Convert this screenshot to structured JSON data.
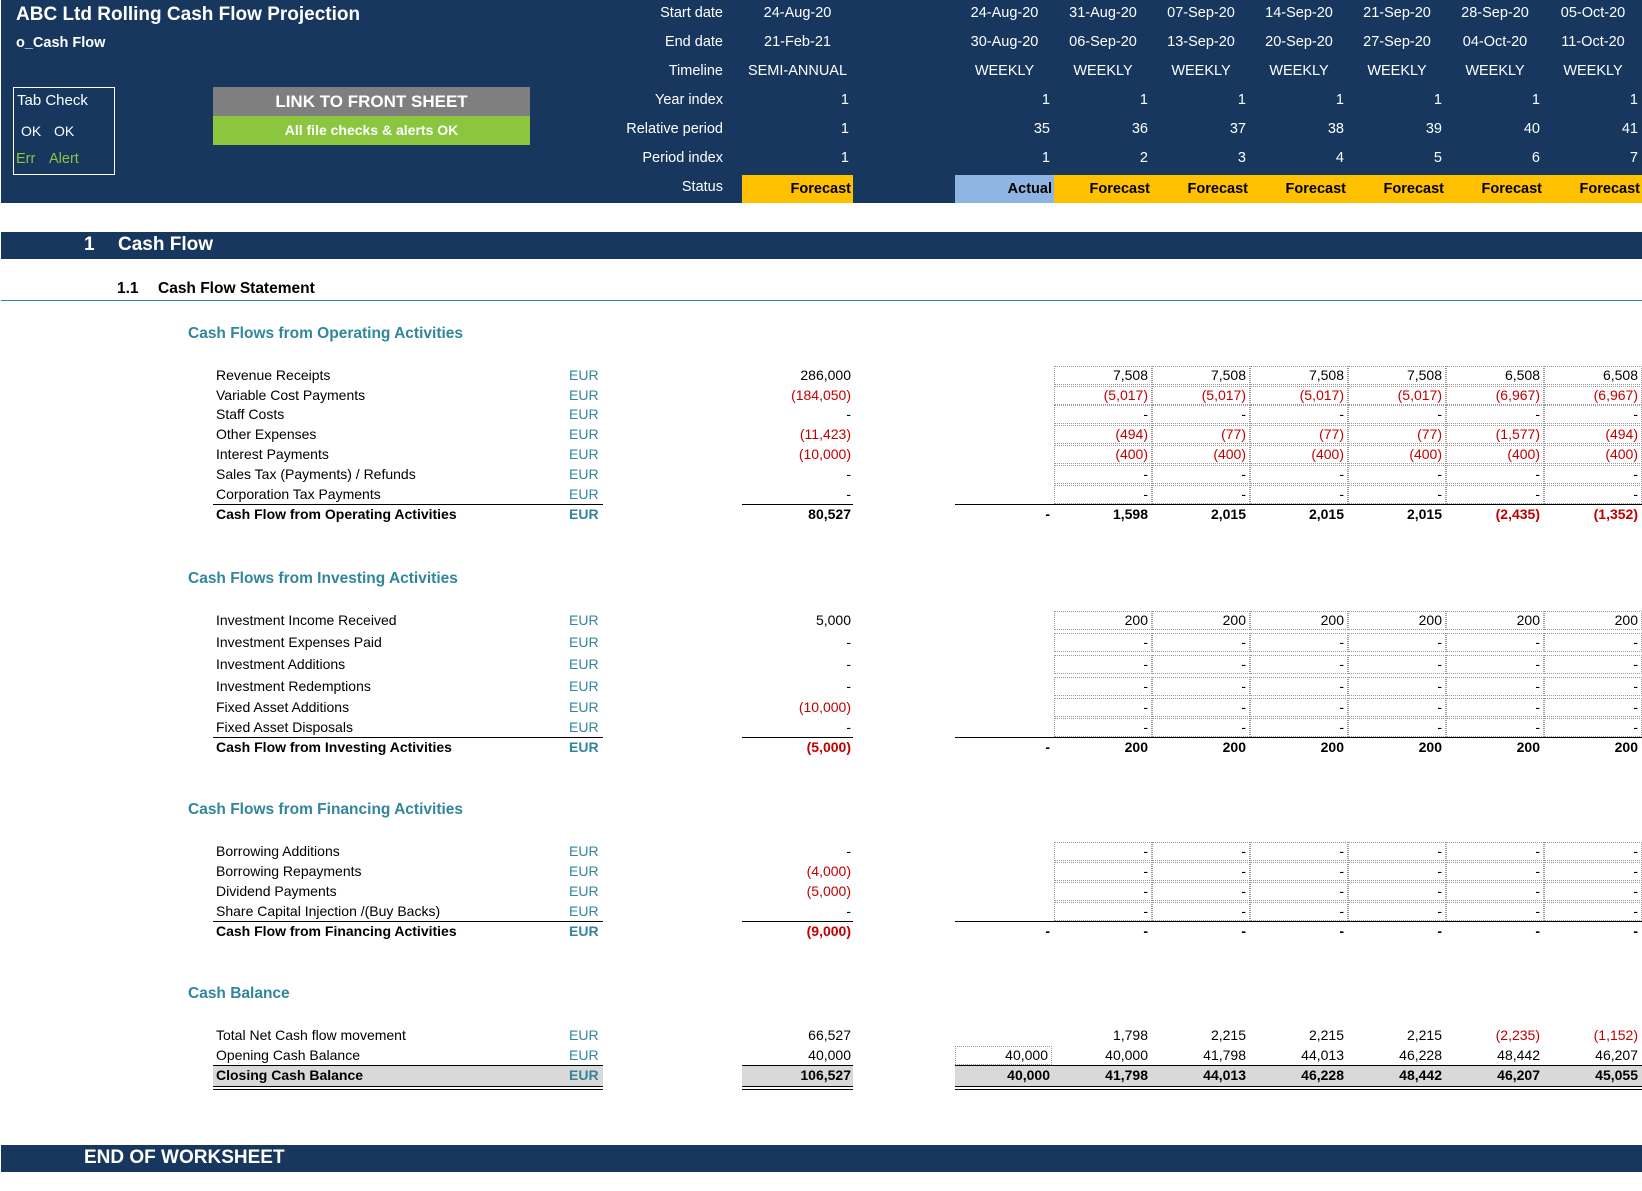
{
  "header": {
    "title": "ABC Ltd Rolling Cash Flow Projection",
    "sheet_name": "o_Cash Flow",
    "tab_check": {
      "title": "Tab Check",
      "ok1": "OK",
      "ok2": "OK",
      "err": "Err",
      "alert": "Alert"
    },
    "link_button": "LINK TO FRONT SHEET",
    "checks_banner": "All file checks & alerts OK",
    "row_labels": [
      "Start date",
      "End date",
      "Timeline",
      "Year index",
      "Relative period",
      "Period index",
      "Status"
    ],
    "summary_column": [
      "24-Aug-20",
      "21-Feb-21",
      "SEMI-ANNUAL",
      "1",
      "1",
      "1",
      "Forecast"
    ],
    "periods": [
      {
        "start": "24-Aug-20",
        "end": "30-Aug-20",
        "timeline": "WEEKLY",
        "year": "1",
        "rel": "35",
        "idx": "1",
        "status": "Actual"
      },
      {
        "start": "31-Aug-20",
        "end": "06-Sep-20",
        "timeline": "WEEKLY",
        "year": "1",
        "rel": "36",
        "idx": "2",
        "status": "Forecast"
      },
      {
        "start": "07-Sep-20",
        "end": "13-Sep-20",
        "timeline": "WEEKLY",
        "year": "1",
        "rel": "37",
        "idx": "3",
        "status": "Forecast"
      },
      {
        "start": "14-Sep-20",
        "end": "20-Sep-20",
        "timeline": "WEEKLY",
        "year": "1",
        "rel": "38",
        "idx": "4",
        "status": "Forecast"
      },
      {
        "start": "21-Sep-20",
        "end": "27-Sep-20",
        "timeline": "WEEKLY",
        "year": "1",
        "rel": "39",
        "idx": "5",
        "status": "Forecast"
      },
      {
        "start": "28-Sep-20",
        "end": "04-Oct-20",
        "timeline": "WEEKLY",
        "year": "1",
        "rel": "40",
        "idx": "6",
        "status": "Forecast"
      },
      {
        "start": "05-Oct-20",
        "end": "11-Oct-20",
        "timeline": "WEEKLY",
        "year": "1",
        "rel": "41",
        "idx": "7",
        "status": "Forecast"
      }
    ]
  },
  "section": {
    "number": "1",
    "title": "Cash Flow",
    "sub_number": "1.1",
    "sub_title": "Cash Flow Statement"
  },
  "blocks": [
    {
      "heading": "Cash Flows from Operating Activities",
      "rows": [
        {
          "label": "Revenue Receipts",
          "cur": "EUR",
          "total": "286,000",
          "weeks": [
            "7,508",
            "7,508",
            "7,508",
            "7,508",
            "6,508",
            "6,508"
          ]
        },
        {
          "label": "Variable Cost Payments",
          "cur": "EUR",
          "total": "(184,050)",
          "weeks": [
            "(5,017)",
            "(5,017)",
            "(5,017)",
            "(5,017)",
            "(6,967)",
            "(6,967)"
          ]
        },
        {
          "label": "Staff Costs",
          "cur": "EUR",
          "total": "-",
          "weeks": [
            "-",
            "-",
            "-",
            "-",
            "-",
            "-"
          ]
        },
        {
          "label": "Other Expenses",
          "cur": "EUR",
          "total": "(11,423)",
          "weeks": [
            "(494)",
            "(77)",
            "(77)",
            "(77)",
            "(1,577)",
            "(494)"
          ]
        },
        {
          "label": "Interest Payments",
          "cur": "EUR",
          "total": "(10,000)",
          "weeks": [
            "(400)",
            "(400)",
            "(400)",
            "(400)",
            "(400)",
            "(400)"
          ]
        },
        {
          "label": "Sales Tax (Payments) / Refunds",
          "cur": "EUR",
          "total": "-",
          "weeks": [
            "-",
            "-",
            "-",
            "-",
            "-",
            "-"
          ]
        },
        {
          "label": "Corporation Tax Payments",
          "cur": "EUR",
          "total": "-",
          "weeks": [
            "-",
            "-",
            "-",
            "-",
            "-",
            "-"
          ]
        }
      ],
      "total_row": {
        "label": "Cash Flow from Operating Activities",
        "cur": "EUR",
        "total": "80,527",
        "actual": "-",
        "weeks": [
          "1,598",
          "2,015",
          "2,015",
          "2,015",
          "(2,435)",
          "(1,352)"
        ]
      }
    },
    {
      "heading": "Cash Flows from Investing Activities",
      "rows": [
        {
          "label": "Investment Income Received",
          "cur": "EUR",
          "total": "5,000",
          "weeks": [
            "200",
            "200",
            "200",
            "200",
            "200",
            "200"
          ]
        },
        {
          "label": "Investment Expenses Paid",
          "cur": "EUR",
          "total": "-",
          "weeks": [
            "-",
            "-",
            "-",
            "-",
            "-",
            "-"
          ]
        },
        {
          "label": "Investment Additions",
          "cur": "EUR",
          "total": "-",
          "weeks": [
            "-",
            "-",
            "-",
            "-",
            "-",
            "-"
          ]
        },
        {
          "label": "Investment Redemptions",
          "cur": "EUR",
          "total": "-",
          "weeks": [
            "-",
            "-",
            "-",
            "-",
            "-",
            "-"
          ]
        },
        {
          "label": "Fixed Asset Additions",
          "cur": "EUR",
          "total": "(10,000)",
          "weeks": [
            "-",
            "-",
            "-",
            "-",
            "-",
            "-"
          ]
        },
        {
          "label": "Fixed Asset Disposals",
          "cur": "EUR",
          "total": "-",
          "weeks": [
            "-",
            "-",
            "-",
            "-",
            "-",
            "-"
          ]
        }
      ],
      "total_row": {
        "label": "Cash Flow from Investing Activities",
        "cur": "EUR",
        "total": "(5,000)",
        "actual": "-",
        "weeks": [
          "200",
          "200",
          "200",
          "200",
          "200",
          "200"
        ]
      }
    },
    {
      "heading": "Cash Flows from Financing Activities",
      "rows": [
        {
          "label": "Borrowing Additions",
          "cur": "EUR",
          "total": "-",
          "weeks": [
            "-",
            "-",
            "-",
            "-",
            "-",
            "-"
          ]
        },
        {
          "label": "Borrowing Repayments",
          "cur": "EUR",
          "total": "(4,000)",
          "weeks": [
            "-",
            "-",
            "-",
            "-",
            "-",
            "-"
          ]
        },
        {
          "label": "Dividend Payments",
          "cur": "EUR",
          "total": "(5,000)",
          "weeks": [
            "-",
            "-",
            "-",
            "-",
            "-",
            "-"
          ]
        },
        {
          "label": "Share Capital Injection /(Buy Backs)",
          "cur": "EUR",
          "total": "-",
          "weeks": [
            "-",
            "-",
            "-",
            "-",
            "-",
            "-"
          ]
        }
      ],
      "total_row": {
        "label": "Cash Flow from Financing Activities",
        "cur": "EUR",
        "total": "(9,000)",
        "actual": "-",
        "weeks": [
          "-",
          "-",
          "-",
          "-",
          "-",
          "-"
        ]
      }
    }
  ],
  "balance": {
    "heading": "Cash Balance",
    "rows": [
      {
        "label": "Total Net Cash flow movement",
        "cur": "EUR",
        "total": "66,527",
        "actual": "",
        "weeks": [
          "1,798",
          "2,215",
          "2,215",
          "2,215",
          "(2,235)",
          "(1,152)"
        ]
      },
      {
        "label": "Opening Cash Balance",
        "cur": "EUR",
        "total": "40,000",
        "actual": "40,000",
        "weeks": [
          "40,000",
          "41,798",
          "44,013",
          "46,228",
          "48,442",
          "46,207"
        ]
      }
    ],
    "closing": {
      "label": "Closing Cash Balance",
      "cur": "EUR",
      "total": "106,527",
      "actual": "40,000",
      "weeks": [
        "41,798",
        "44,013",
        "46,228",
        "48,442",
        "46,207",
        "45,055"
      ]
    }
  },
  "footer": "END OF WORKSHEET",
  "colors": {
    "header_bg": "#17375e",
    "forecast": "#ffc000",
    "actual": "#8db4e2",
    "heading": "#31869b",
    "negative": "#c00000",
    "button_grey": "#7f7f7f",
    "button_green": "#8cc63f"
  }
}
